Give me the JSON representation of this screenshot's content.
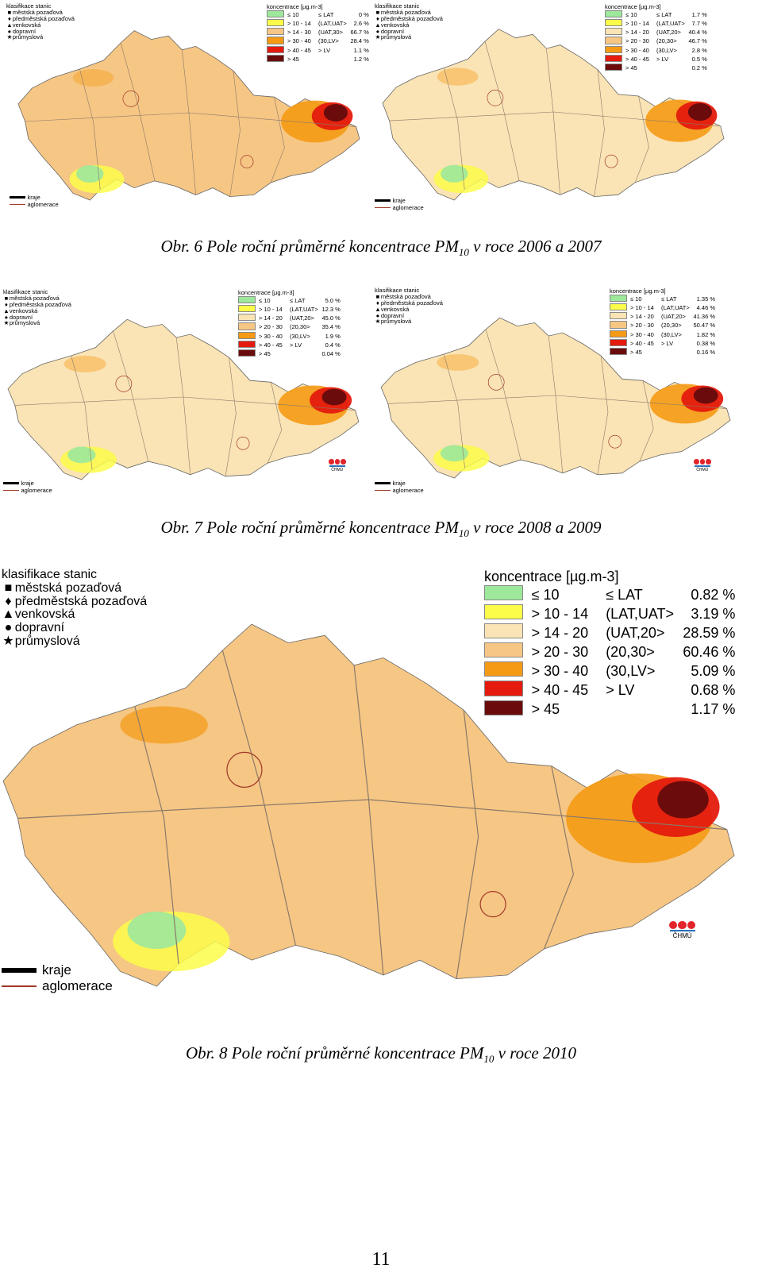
{
  "classification": {
    "title": "klasifikace stanic",
    "items": [
      {
        "symbol": "■",
        "label": "městská pozaďová"
      },
      {
        "symbol": "♦",
        "label": "předměstská pozaďová"
      },
      {
        "symbol": "▲",
        "label": "venkovská"
      },
      {
        "symbol": "●",
        "label": "dopravní"
      },
      {
        "symbol": "★",
        "label": "průmyslová"
      }
    ]
  },
  "boundary_legend": {
    "regions": "kraje",
    "agglomerations": "aglomerace"
  },
  "colors": {
    "c1": "#9de89b",
    "c2": "#fbfb4a",
    "c3": "#fae3b4",
    "c4": "#f6c684",
    "c5": "#f59a14",
    "c6": "#e41b0e",
    "c7": "#6b0b0c"
  },
  "logo_text": "ČHMÚ",
  "maps": [
    {
      "id": "2006",
      "legend_title": "koncentrace [µg.m-3]",
      "classes": [
        {
          "range": "≤ 10",
          "code": "≤ LAT",
          "percent": "0 %",
          "color": "#9de89b"
        },
        {
          "range": "> 10 - 14",
          "code": "(LAT,UAT>",
          "percent": "2.6 %",
          "color": "#fbfb4a"
        },
        {
          "range": "> 14 - 30",
          "code": "(UAT,30>",
          "percent": "66.7 %",
          "color": "#f6c684"
        },
        {
          "range": "> 30 - 40",
          "code": "(30,LV>",
          "percent": "28.4 %",
          "color": "#f59a14"
        },
        {
          "range": "> 40 - 45",
          "code": "> LV",
          "percent": "1.1 %",
          "color": "#e41b0e"
        },
        {
          "range": "> 45",
          "code": "",
          "percent": "1.2 %",
          "color": "#6b0b0c"
        }
      ]
    },
    {
      "id": "2007",
      "legend_title": "koncentrace [µg.m-3]",
      "classes": [
        {
          "range": "≤ 10",
          "code": "≤ LAT",
          "percent": "1.7 %",
          "color": "#9de89b"
        },
        {
          "range": "> 10 - 14",
          "code": "(LAT,UAT>",
          "percent": "7.7 %",
          "color": "#fbfb4a"
        },
        {
          "range": "> 14 - 20",
          "code": "(UAT,20>",
          "percent": "40.4 %",
          "color": "#fae3b4"
        },
        {
          "range": "> 20 - 30",
          "code": "(20,30>",
          "percent": "46.7 %",
          "color": "#f6c684"
        },
        {
          "range": "> 30 - 40",
          "code": "(30,LV>",
          "percent": "2.8 %",
          "color": "#f59a14"
        },
        {
          "range": "> 40 - 45",
          "code": "> LV",
          "percent": "0.5 %",
          "color": "#e41b0e"
        },
        {
          "range": "> 45",
          "code": "",
          "percent": "0.2 %",
          "color": "#6b0b0c"
        }
      ]
    },
    {
      "id": "2008",
      "legend_title": "koncentrace [µg.m-3]",
      "classes": [
        {
          "range": "≤ 10",
          "code": "≤ LAT",
          "percent": "5.0 %",
          "color": "#9de89b"
        },
        {
          "range": "> 10 - 14",
          "code": "(LAT,UAT>",
          "percent": "12.3 %",
          "color": "#fbfb4a"
        },
        {
          "range": "> 14 - 20",
          "code": "(UAT,20>",
          "percent": "45.0 %",
          "color": "#fae3b4"
        },
        {
          "range": "> 20 - 30",
          "code": "(20,30>",
          "percent": "35.4 %",
          "color": "#f6c684"
        },
        {
          "range": "> 30 - 40",
          "code": "(30,LV>",
          "percent": "1.9 %",
          "color": "#f59a14"
        },
        {
          "range": "> 40 - 45",
          "code": "> LV",
          "percent": "0.4 %",
          "color": "#e41b0e"
        },
        {
          "range": "> 45",
          "code": "",
          "percent": "0.04 %",
          "color": "#6b0b0c"
        }
      ]
    },
    {
      "id": "2009",
      "legend_title": "koncentrace [µg.m-3]",
      "classes": [
        {
          "range": "≤ 10",
          "code": "≤ LAT",
          "percent": "1.35 %",
          "color": "#9de89b"
        },
        {
          "range": "> 10 - 14",
          "code": "(LAT,UAT>",
          "percent": "4.46 %",
          "color": "#fbfb4a"
        },
        {
          "range": "> 14 - 20",
          "code": "(UAT,20>",
          "percent": "41.36 %",
          "color": "#fae3b4"
        },
        {
          "range": "> 20 - 30",
          "code": "(20,30>",
          "percent": "50.47 %",
          "color": "#f6c684"
        },
        {
          "range": "> 30 - 40",
          "code": "(30,LV>",
          "percent": "1.82 %",
          "color": "#f59a14"
        },
        {
          "range": "> 40 - 45",
          "code": "> LV",
          "percent": "0.38 %",
          "color": "#e41b0e"
        },
        {
          "range": "> 45",
          "code": "",
          "percent": "0.16 %",
          "color": "#6b0b0c"
        }
      ]
    },
    {
      "id": "2010",
      "legend_title": "koncentrace [µg.m-3]",
      "classes": [
        {
          "range": "≤ 10",
          "code": "≤ LAT",
          "percent": "0.82 %",
          "color": "#9de89b"
        },
        {
          "range": "> 10 - 14",
          "code": "(LAT,UAT>",
          "percent": "3.19 %",
          "color": "#fbfb4a"
        },
        {
          "range": "> 14 - 20",
          "code": "(UAT,20>",
          "percent": "28.59 %",
          "color": "#fae3b4"
        },
        {
          "range": "> 20 - 30",
          "code": "(20,30>",
          "percent": "60.46 %",
          "color": "#f6c684"
        },
        {
          "range": "> 30 - 40",
          "code": "(30,LV>",
          "percent": "5.09 %",
          "color": "#f59a14"
        },
        {
          "range": "> 40 - 45",
          "code": "> LV",
          "percent": "0.68 %",
          "color": "#e41b0e"
        },
        {
          "range": "> 45",
          "code": "",
          "percent": "1.17 %",
          "color": "#6b0b0c"
        }
      ]
    }
  ],
  "captions": [
    {
      "before": "Obr. 6 Pole roční průměrné koncentrace PM",
      "sub": "10",
      "after": " v roce 2006 a 2007"
    },
    {
      "before": "Obr. 7 Pole roční průměrné koncentrace PM",
      "sub": "10",
      "after": " v roce 2008 a 2009"
    },
    {
      "before": "Obr. 8 Pole roční průměrné koncentrace PM",
      "sub": "10",
      "after": " v roce 2010"
    }
  ],
  "page_number": "11"
}
